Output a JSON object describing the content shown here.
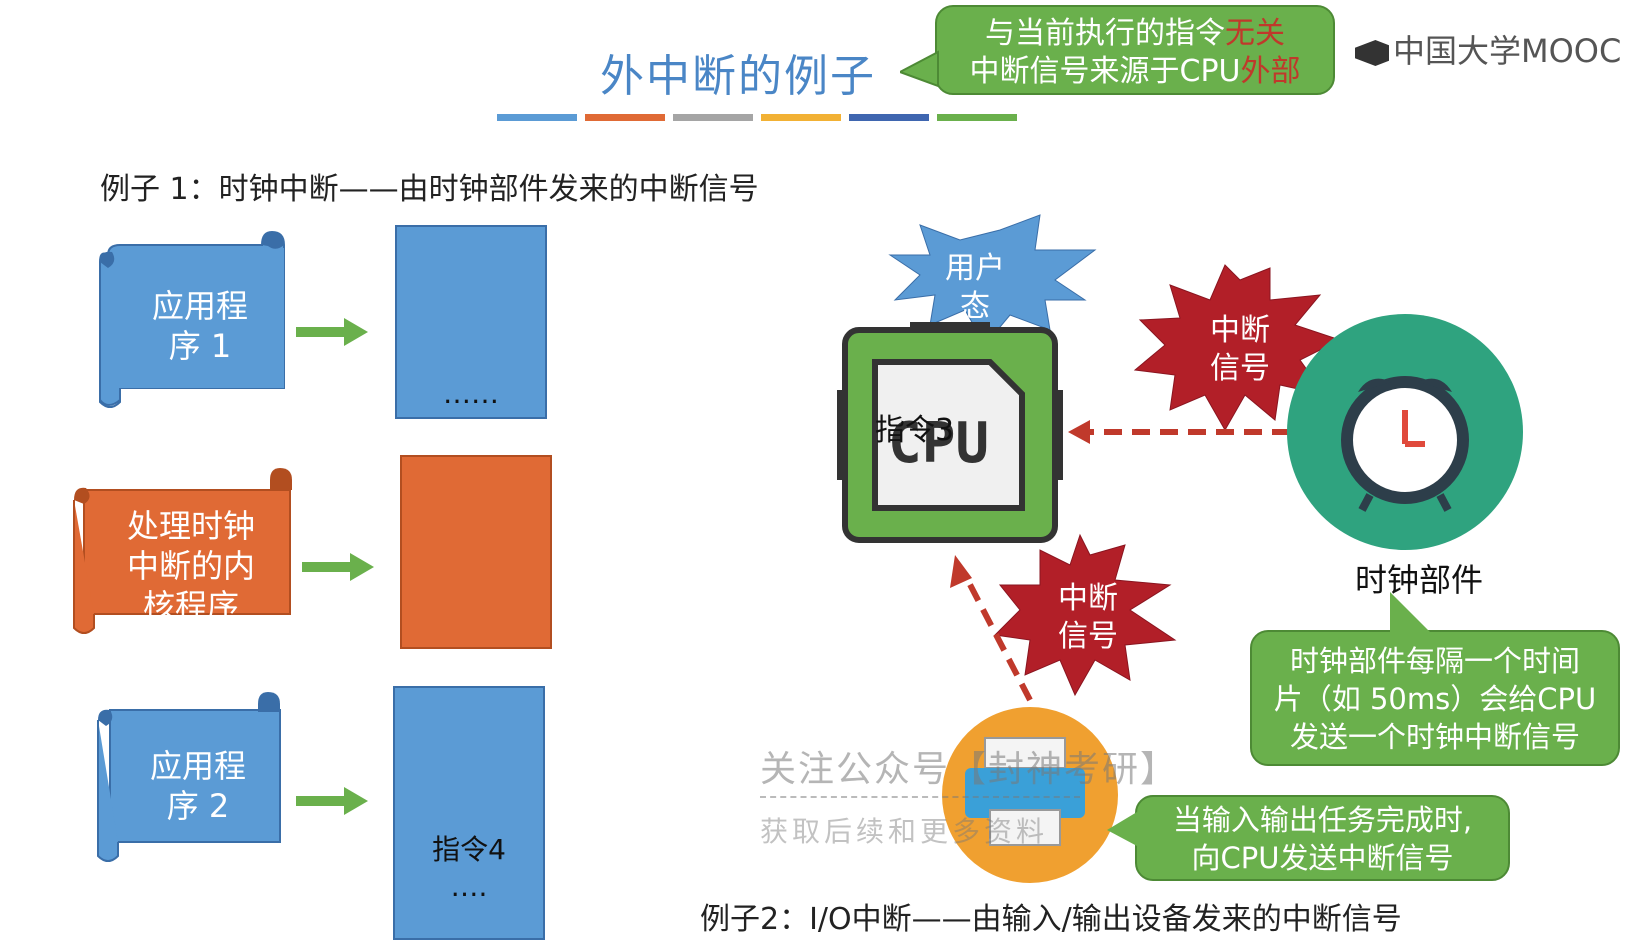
{
  "header": {
    "title": "外中断的例子",
    "mooc_logo": "中国大学MOOC",
    "color_bar": [
      "#5b9bd5",
      "#e06a35",
      "#a5a5a5",
      "#f2b134",
      "#3f66b0",
      "#6ab04c"
    ]
  },
  "top_bubble": {
    "line1_prefix": "与当前执行的指令",
    "line1_highlight": "无关",
    "line2_prefix": "中断信号来源于CPU",
    "line2_highlight": "外部"
  },
  "example1": "例子 1：时钟中断——由时钟部件发来的中断信号",
  "example2": "例子2：I/O中断——由输入/输出设备发来的中断信号",
  "programs": [
    {
      "label1": "应用程",
      "label2": "序 1",
      "color": "#5b9bd5",
      "block_text": "……"
    },
    {
      "label1": "处理时钟",
      "label2": "中断的内",
      "label3": "核程序",
      "color": "#e06a35",
      "block_text": ""
    },
    {
      "label1": "应用程",
      "label2": "序 2",
      "color": "#5b9bd5",
      "block_text1": "指令4",
      "block_text2": "…."
    }
  ],
  "diagram": {
    "user_state": [
      "用户",
      "态"
    ],
    "interrupt_signal_top": [
      "中断",
      "信号"
    ],
    "interrupt_signal_bottom": [
      "中断",
      "信号"
    ],
    "cpu_label": "CPU",
    "cpu_overlay": "指令3",
    "clock_label": "时钟部件",
    "clock_bubble": [
      "时钟部件每隔一个时间",
      "片（如 50ms）会给CPU",
      "发送一个时钟中断信号"
    ],
    "io_bubble": [
      "当输入输出任务完成时,",
      "向CPU发送中断信号"
    ]
  },
  "watermark": {
    "line1": "关注公众号【封神考研】",
    "line2": "获取后续和更多资料"
  }
}
